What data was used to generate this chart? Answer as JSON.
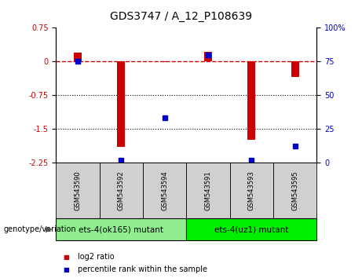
{
  "title": "GDS3747 / A_12_P108639",
  "samples": [
    "GSM543590",
    "GSM543592",
    "GSM543594",
    "GSM543591",
    "GSM543593",
    "GSM543595"
  ],
  "log2_ratios": [
    0.2,
    -1.9,
    -0.02,
    0.22,
    -1.75,
    -0.35
  ],
  "percentile_ranks": [
    75,
    2,
    33,
    80,
    2,
    12
  ],
  "ylim_left": [
    -2.25,
    0.75
  ],
  "ylim_right": [
    0,
    100
  ],
  "yticks_left": [
    0.75,
    0,
    -0.75,
    -1.5,
    -2.25
  ],
  "yticks_right": [
    100,
    75,
    50,
    25,
    0
  ],
  "hlines_dotted": [
    -0.75,
    -1.5
  ],
  "hline_dashed": 0,
  "bar_color": "#cc0000",
  "dot_color": "#0000cc",
  "bar_width": 0.18,
  "group0_color": "#90ee90",
  "group1_color": "#00ee00",
  "group0_label": "ets-4(ok165) mutant",
  "group1_label": "ets-4(uz1) mutant",
  "genotype_label": "genotype/variation",
  "legend_log2": "log2 ratio",
  "legend_pct": "percentile rank within the sample",
  "title_fontsize": 10,
  "tick_fontsize": 7,
  "sample_fontsize": 6,
  "group_fontsize": 7.5,
  "legend_fontsize": 7,
  "genotype_fontsize": 7
}
